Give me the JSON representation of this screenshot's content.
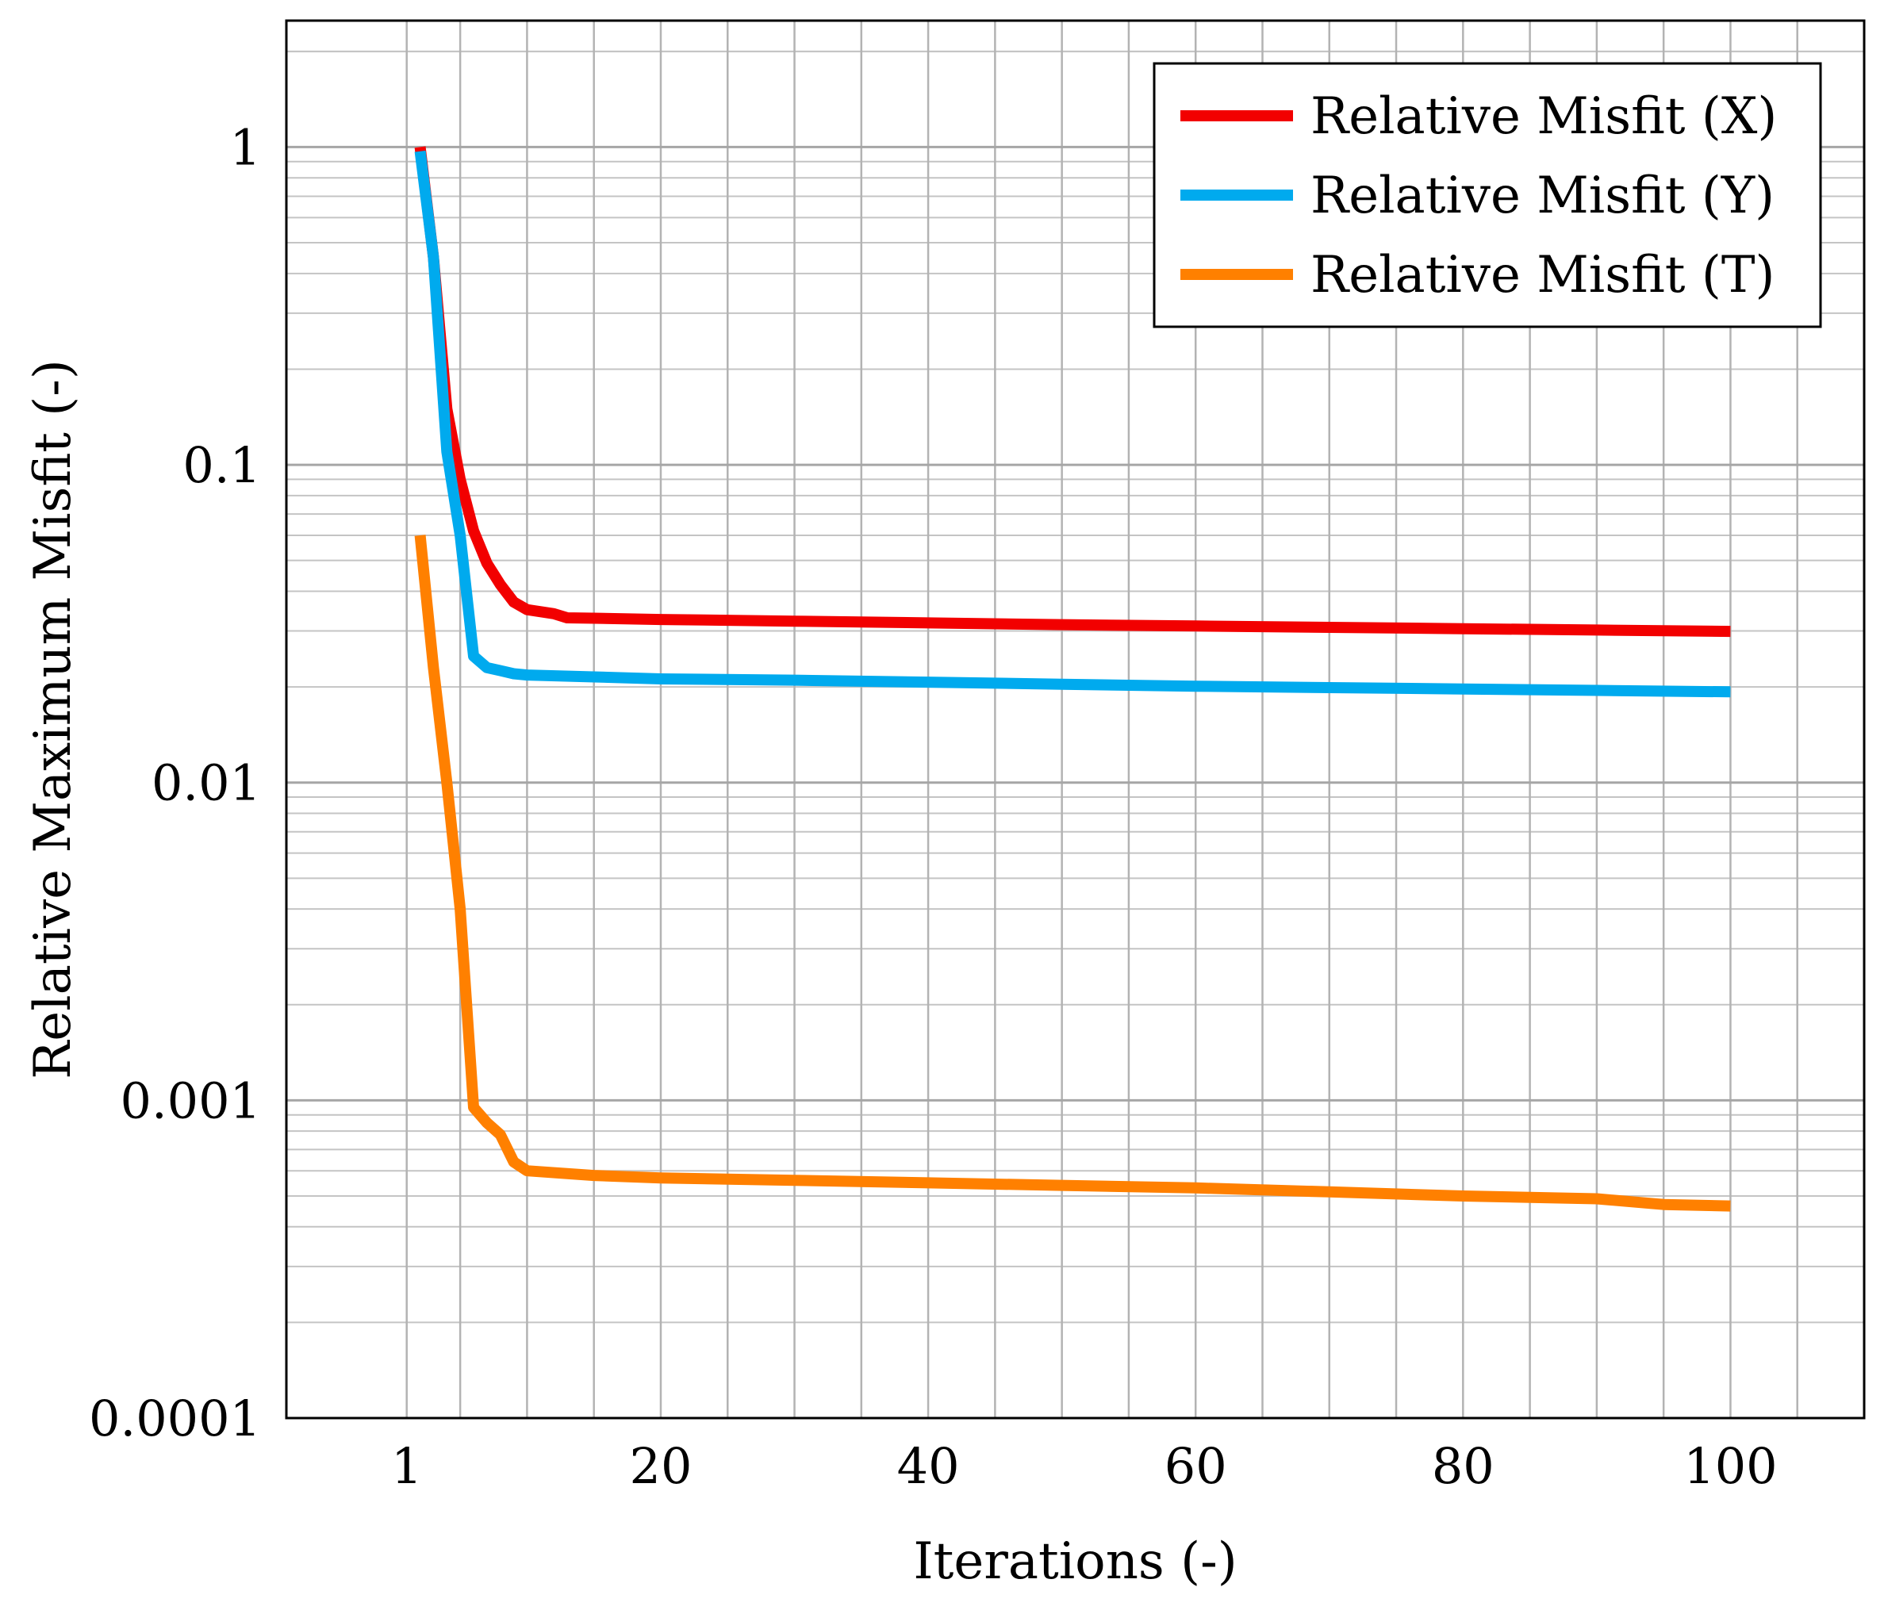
{
  "chart_data": {
    "type": "line",
    "title": "",
    "xlabel": "Iterations (-)",
    "ylabel": "Relative Maximum Misfit (-)",
    "xlim": [
      -8,
      110
    ],
    "ylim": [
      0.0001,
      2.5
    ],
    "yscale": "log",
    "grid": true,
    "legend_position": "top-right",
    "x_ticks": [
      1,
      20,
      40,
      60,
      80,
      100
    ],
    "x_tick_labels": [
      "1",
      "20",
      "40",
      "60",
      "80",
      "100"
    ],
    "y_ticks": [
      1,
      0.1,
      0.01,
      0.001,
      0.0001
    ],
    "y_tick_labels": [
      "1",
      "0.1",
      "0.01",
      "0.001",
      "0.0001"
    ],
    "series": [
      {
        "name": "Relative Misfit (X)",
        "color": "#f20000",
        "x": [
          2,
          3,
          4,
          5,
          6,
          7,
          8,
          9,
          10,
          12,
          13,
          15,
          20,
          30,
          40,
          50,
          60,
          70,
          80,
          90,
          100
        ],
        "y": [
          1.0,
          0.45,
          0.15,
          0.09,
          0.062,
          0.049,
          0.042,
          0.037,
          0.035,
          0.034,
          0.033,
          0.0329,
          0.0326,
          0.0322,
          0.0318,
          0.0314,
          0.0311,
          0.0308,
          0.0305,
          0.0302,
          0.0299
        ]
      },
      {
        "name": "Relative Misfit (Y)",
        "color": "#00aaee",
        "x": [
          2,
          3,
          4,
          5,
          6,
          7,
          8,
          9,
          10,
          15,
          20,
          30,
          40,
          50,
          60,
          70,
          80,
          90,
          100
        ],
        "y": [
          0.97,
          0.45,
          0.11,
          0.06,
          0.025,
          0.023,
          0.0225,
          0.022,
          0.0218,
          0.0215,
          0.0212,
          0.021,
          0.0207,
          0.0204,
          0.0201,
          0.0199,
          0.0197,
          0.0195,
          0.0193
        ]
      },
      {
        "name": "Relative Misfit (T)",
        "color": "#ff8000",
        "x": [
          2,
          3,
          4,
          5,
          6,
          7,
          8,
          9,
          10,
          15,
          20,
          30,
          40,
          50,
          60,
          70,
          80,
          90,
          95,
          100
        ],
        "y": [
          0.06,
          0.023,
          0.01,
          0.004,
          0.00095,
          0.00085,
          0.00078,
          0.00064,
          0.0006,
          0.00058,
          0.00057,
          0.00056,
          0.00055,
          0.00054,
          0.00053,
          0.000515,
          0.0005,
          0.00049,
          0.00047,
          0.000465
        ]
      }
    ]
  }
}
